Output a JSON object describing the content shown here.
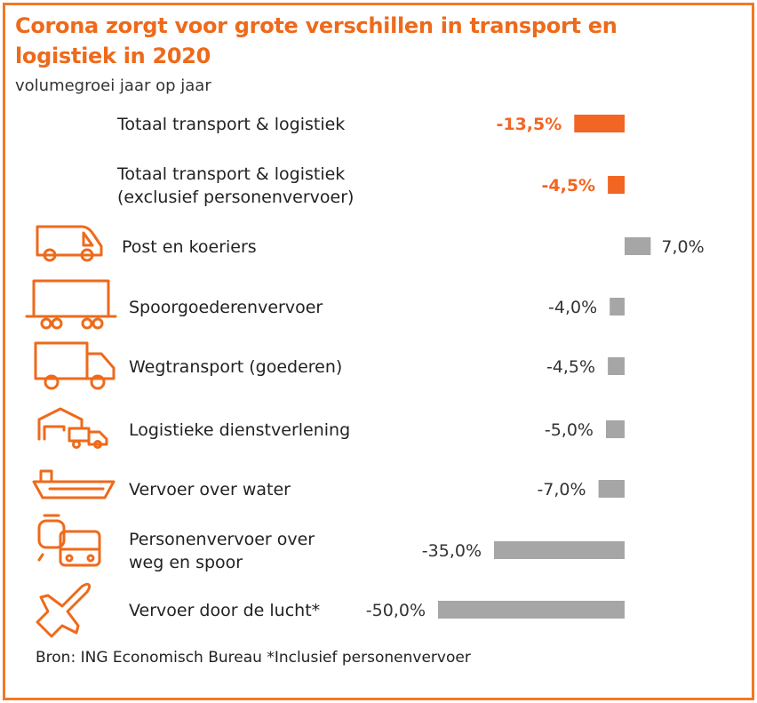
{
  "title": "Corona zorgt voor grote verschillen in transport en logistiek in 2020",
  "subtitle": "volumegroei jaar op jaar",
  "source": "Bron: ING Economisch Bureau *Inclusief personenvervoer",
  "colors": {
    "accent": "#ee6a1b",
    "bar_highlight": "#f26522",
    "bar_default": "#a6a6a6",
    "frame": "#f07a22"
  },
  "chart_data": {
    "type": "bar",
    "orientation": "horizontal",
    "categories": [
      [
        "Totaal transport & logistiek"
      ],
      [
        "Totaal transport & logistiek",
        "(exclusief personenvervoer)"
      ],
      [
        "Post en koeriers"
      ],
      [
        "Spoorgoederenvervoer"
      ],
      [
        "Wegtransport (goederen)"
      ],
      [
        "Logistieke dienstverlening"
      ],
      [
        "Vervoer over water"
      ],
      [
        "Personenvervoer over",
        "weg en spoor"
      ],
      [
        "Vervoer door de lucht*"
      ]
    ],
    "values": [
      -13.5,
      -4.5,
      7.0,
      -4.0,
      -4.5,
      -5.0,
      -7.0,
      -35.0,
      -50.0
    ],
    "value_labels": [
      "-13,5%",
      "-4,5%",
      "7,0%",
      "-4,0%",
      "-4,5%",
      "-5,0%",
      "-7,0%",
      "-35,0%",
      "-50,0%"
    ],
    "highlighted": [
      true,
      true,
      false,
      false,
      false,
      false,
      false,
      false,
      false
    ],
    "icons": [
      null,
      null,
      "delivery-van-icon",
      "freight-wagon-icon",
      "truck-icon",
      "warehouse-icon",
      "ship-icon",
      "train-bus-icon",
      "airplane-icon"
    ],
    "xlim": [
      -50,
      7
    ],
    "grid": false,
    "legend": "none"
  }
}
